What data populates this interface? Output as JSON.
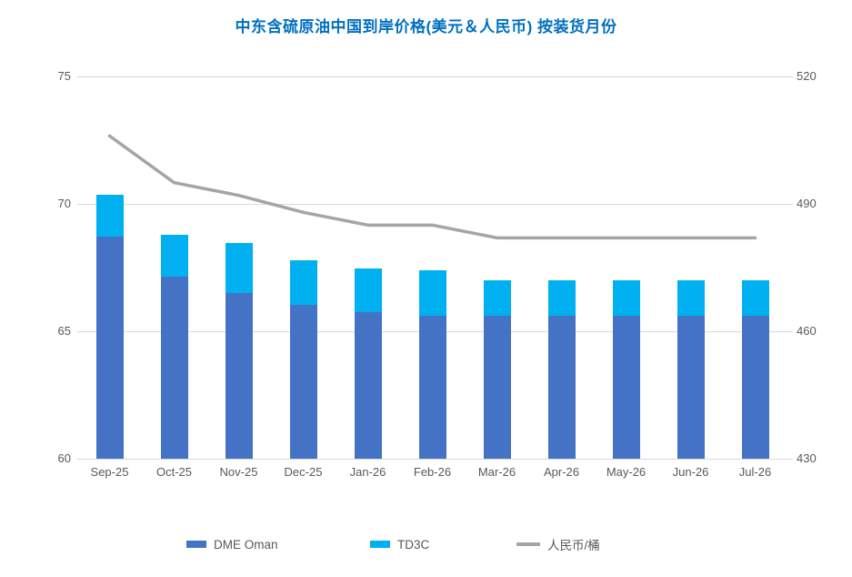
{
  "title": "中东含硫原油中国到岸价格(美元＆人民币) 按装货月份",
  "chart_data": {
    "type": "bar",
    "subtype": "stacked-column-with-line",
    "title": "中东含硫原油中国到岸价格(美元＆人民币) 按装货月份",
    "categories": [
      "Sep-25",
      "Oct-25",
      "Nov-25",
      "Dec-25",
      "Jan-26",
      "Feb-26",
      "Mar-26",
      "Apr-26",
      "May-26",
      "Jun-26",
      "Jul-26"
    ],
    "series": [
      {
        "name": "DME Oman",
        "type": "bar",
        "stack": true,
        "axis": "left",
        "color": "#4472C4",
        "values": [
          68.7,
          67.15,
          66.5,
          66.05,
          65.75,
          65.6,
          65.6,
          65.6,
          65.6,
          65.6,
          65.6
        ]
      },
      {
        "name": "TD3C",
        "type": "bar",
        "stack": true,
        "axis": "left",
        "color": "#00B0F0",
        "values": [
          1.65,
          1.65,
          1.95,
          1.75,
          1.7,
          1.8,
          1.4,
          1.4,
          1.4,
          1.4,
          1.4
        ]
      },
      {
        "name": "人民币/桶",
        "type": "line",
        "axis": "right",
        "color": "#A5A5A5",
        "values": [
          506,
          495,
          492,
          488,
          485,
          485,
          482,
          482,
          482,
          482,
          482
        ]
      }
    ],
    "stacked_totals": [
      70.35,
      68.8,
      68.45,
      67.8,
      67.45,
      67.4,
      67.0,
      67.0,
      67.0,
      67.0,
      67.0
    ],
    "left_axis": {
      "label": "",
      "min": 60,
      "max": 75,
      "ticks": [
        75,
        70,
        65,
        60
      ]
    },
    "right_axis": {
      "label": "",
      "min": 430,
      "max": 520,
      "ticks": [
        520,
        490,
        460,
        430
      ]
    },
    "grid": "horizontal",
    "legend_position": "bottom"
  },
  "legend": {
    "items": [
      {
        "label": "DME Oman",
        "swatch": "bar",
        "color": "#4472C4"
      },
      {
        "label": "TD3C",
        "swatch": "bar",
        "color": "#00B0F0"
      },
      {
        "label": "人民币/桶",
        "swatch": "line",
        "color": "#A5A5A5"
      }
    ]
  },
  "colors": {
    "title": "#0070C0",
    "axis_text": "#595959",
    "gridline": "#D9D9D9",
    "background": "#FFFFFF"
  }
}
